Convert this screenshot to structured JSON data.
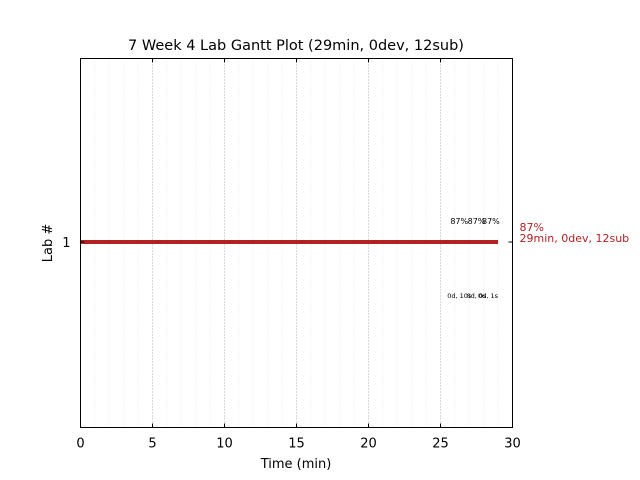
{
  "chart_data": {
    "type": "bar",
    "title": "7 Week 4 Lab Gantt Plot (29min, 0dev, 12sub)",
    "xlabel": "Time (min)",
    "ylabel": "Lab #",
    "xlim": [
      0,
      30
    ],
    "xticks": [
      0,
      5,
      10,
      15,
      20,
      25,
      30
    ],
    "grid": true,
    "lanes": [
      {
        "tick_label": "1",
        "lane": 1,
        "bar": {
          "start": 0,
          "end": 29,
          "color": "#b22222"
        },
        "side_label": {
          "line1": "87%",
          "line2": "29min, 0dev, 12sub",
          "color": "#b22222"
        },
        "upper_annotations": [
          {
            "x": 26.3,
            "text": "87%"
          },
          {
            "x": 27.5,
            "text": "87%"
          },
          {
            "x": 28.5,
            "text": "87%"
          }
        ],
        "lower_annotations": [
          {
            "x": 26.3,
            "text": "0d, 10s"
          },
          {
            "x": 27.5,
            "text": "0d, 0s"
          },
          {
            "x": 28.3,
            "text": "0d, 1s"
          }
        ]
      }
    ]
  }
}
